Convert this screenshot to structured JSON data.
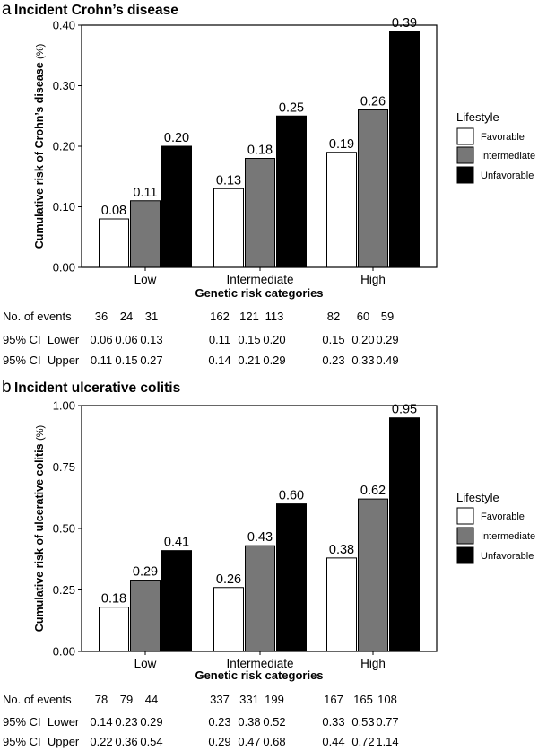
{
  "chart_data": [
    {
      "type": "bar",
      "panel_letter": "a",
      "title": "Incident Crohn’s disease",
      "ylabel": "Cumulative risk of Crohn’s disease",
      "ylabel_unit": "(%)",
      "xlabel": "Genetic risk categories",
      "ylim": [
        0,
        0.4
      ],
      "yticks": [
        "0.00",
        "0.10",
        "0.20",
        "0.30",
        "0.40"
      ],
      "categories": [
        "Low",
        "Intermediate",
        "High"
      ],
      "legend_title": "Lifestyle",
      "series": [
        {
          "name": "Favorable",
          "color": "#ffffff",
          "values": [
            0.08,
            0.13,
            0.19
          ],
          "labels": [
            "0.08",
            "0.13",
            "0.19"
          ]
        },
        {
          "name": "Intermediate",
          "color": "#777777",
          "values": [
            0.11,
            0.18,
            0.26
          ],
          "labels": [
            "0.11",
            "0.18",
            "0.26"
          ]
        },
        {
          "name": "Unfavorable",
          "color": "#000000",
          "values": [
            0.2,
            0.25,
            0.39
          ],
          "labels": [
            "0.20",
            "0.25",
            "0.39"
          ]
        }
      ],
      "table": {
        "rows": [
          {
            "label": "No. of events",
            "values": [
              "36",
              "24",
              "31",
              "162",
              "121",
              "113",
              "82",
              "60",
              "59"
            ]
          },
          {
            "label": "95% CI  Lower",
            "values": [
              "0.06",
              "0.06",
              "0.13",
              "0.11",
              "0.15",
              "0.20",
              "0.15",
              "0.20",
              "0.29"
            ]
          },
          {
            "label": "95% CI  Upper",
            "values": [
              "0.11",
              "0.15",
              "0.27",
              "0.14",
              "0.21",
              "0.29",
              "0.23",
              "0.33",
              "0.49"
            ]
          }
        ]
      }
    },
    {
      "type": "bar",
      "panel_letter": "b",
      "title": "Incident ulcerative colitis",
      "ylabel": "Cumulative risk of ulcerative colitis",
      "ylabel_unit": "(%)",
      "xlabel": "Genetic risk categories",
      "ylim": [
        0,
        1.0
      ],
      "yticks": [
        "0.00",
        "0.25",
        "0.50",
        "0.75",
        "1.00"
      ],
      "categories": [
        "Low",
        "Intermediate",
        "High"
      ],
      "legend_title": "Lifestyle",
      "series": [
        {
          "name": "Favorable",
          "color": "#ffffff",
          "values": [
            0.18,
            0.26,
            0.38
          ],
          "labels": [
            "0.18",
            "0.26",
            "0.38"
          ]
        },
        {
          "name": "Intermediate",
          "color": "#777777",
          "values": [
            0.29,
            0.43,
            0.62
          ],
          "labels": [
            "0.29",
            "0.43",
            "0.62"
          ]
        },
        {
          "name": "Unfavorable",
          "color": "#000000",
          "values": [
            0.41,
            0.6,
            0.95
          ],
          "labels": [
            "0.41",
            "0.60",
            "0.95"
          ]
        }
      ],
      "table": {
        "rows": [
          {
            "label": "No. of events",
            "values": [
              "78",
              "79",
              "44",
              "337",
              "331",
              "199",
              "167",
              "165",
              "108"
            ]
          },
          {
            "label": "95% CI  Lower",
            "values": [
              "0.14",
              "0.23",
              "0.29",
              "0.23",
              "0.38",
              "0.52",
              "0.33",
              "0.53",
              "0.77"
            ]
          },
          {
            "label": "95% CI  Upper",
            "values": [
              "0.22",
              "0.36",
              "0.54",
              "0.29",
              "0.47",
              "0.68",
              "0.44",
              "0.72",
              "1.14"
            ]
          }
        ]
      }
    }
  ]
}
